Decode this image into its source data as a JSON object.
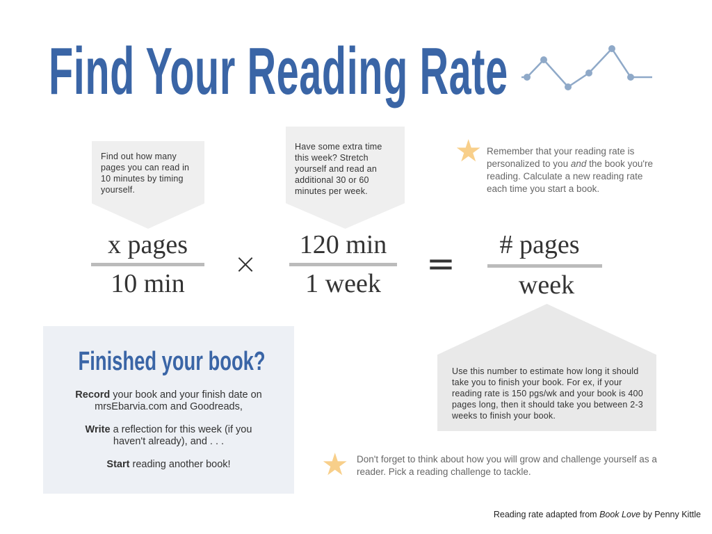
{
  "title": "Find Your Reading Rate",
  "sparkline_icon": "line-chart-icon",
  "accent_color": "#3a65a6",
  "star_color": "#f8cf8a",
  "step1": {
    "text": "Find out how many pages you can read in 10 minutes by timing yourself."
  },
  "step2": {
    "text": "Have some extra time this week? Stretch yourself and read an additional 30 or 60 minutes per week."
  },
  "remember": {
    "before": "Remember that your reading rate is personalized to you ",
    "italic": "and",
    "after": " the book you're reading. Calculate a new reading rate each time you start a book."
  },
  "equation": {
    "f1_num": "x pages",
    "f1_den": "10 min",
    "times": "×",
    "f2_num": "120 min",
    "f2_den": "1 week",
    "equals": "=",
    "f3_num": "# pages",
    "f3_den": "week"
  },
  "estimate": {
    "text": "Use this number to estimate how long it should take you to finish your book. For ex, if your reading rate is 150 pgs/wk and your book is 400 pages long, then it should take you between 2-3 weeks to finish your book."
  },
  "finished": {
    "title": "Finished your book?",
    "p1_bold": "Record",
    "p1_rest": " your book and your finish date on mrsEbarvia.com and Goodreads,",
    "p2_bold": "Write",
    "p2_rest": " a reflection for this week (if you haven't already), and . . .",
    "p3_bold": "Start",
    "p3_rest": " reading another book!"
  },
  "challenge": {
    "text": "Don't forget to think about how you will grow and challenge yourself as a reader. Pick a reading challenge to tackle."
  },
  "credit": {
    "before": "Reading rate adapted from ",
    "italic": "Book Love",
    "after": " by Penny Kittle"
  }
}
